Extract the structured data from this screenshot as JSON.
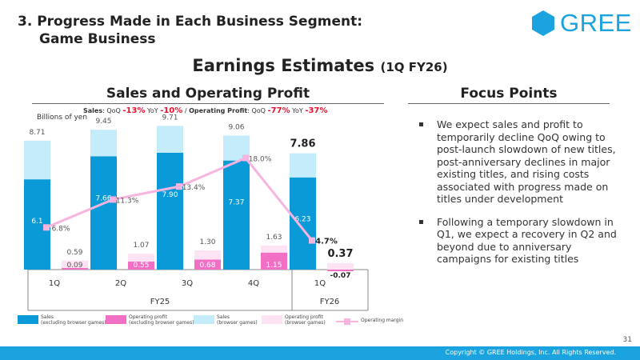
{
  "section_title": {
    "line1": "3. Progress Made in Each Business Segment:",
    "line2": "Game Business"
  },
  "logo": {
    "text": "GREE",
    "color": "#1aa3df"
  },
  "main_title": {
    "text": "Earnings Estimates",
    "sub": "(1Q FY26)"
  },
  "left_heading": "Sales and Operating Profit",
  "right_heading": "Focus Points",
  "growth": {
    "sales_label": "Sales",
    "qoq_label": "QoQ",
    "yoy_label": "YoY",
    "sales_qoq": "-13%",
    "sales_yoy": "-10%",
    "separator": "/",
    "op_label": "Operating Profit",
    "op_qoq": "-77%",
    "op_yoy": "-37%"
  },
  "units": "Billions of yen",
  "focus_points": [
    "We expect sales and profit to temporarily decline QoQ owing to post-launch slowdown of new titles, post-anniversary declines in major existing titles, and rising costs associated with progress made on titles under development",
    "Following a temporary slowdown in Q1, we expect a recovery in Q2 and beyond due to anniversary campaigns for existing titles"
  ],
  "chart_data": {
    "type": "bar",
    "title": "Sales and Operating Profit",
    "ylabel": "Billions of yen",
    "categories": [
      "1Q",
      "2Q",
      "3Q",
      "4Q",
      "1Q"
    ],
    "groups": [
      {
        "label": "FY25",
        "span": 4
      },
      {
        "label": "FY26",
        "span": 1
      }
    ],
    "ylim": [
      -0.3,
      10.5
    ],
    "series": [
      {
        "name": "Sales (excluding browser games)",
        "values": [
          6.1,
          7.66,
          7.9,
          7.37,
          6.23
        ],
        "color": "#0a9ad8"
      },
      {
        "name": "Sales (browser games)",
        "values": [
          2.61,
          1.79,
          1.81,
          1.69,
          1.63
        ],
        "color": "#c5ecfb"
      },
      {
        "name": "Operating profit (excluding browser games)",
        "values": [
          0.09,
          0.55,
          0.68,
          1.15,
          -0.07
        ],
        "color": "#f26fc6"
      },
      {
        "name": "Operating profit (browser games)",
        "values": [
          0.5,
          0.52,
          0.62,
          0.48,
          0.44
        ],
        "color": "#fde3f3"
      }
    ],
    "totals": {
      "sales": [
        8.71,
        9.45,
        9.71,
        9.06,
        7.86
      ],
      "operating_profit": [
        0.59,
        1.07,
        1.3,
        1.63,
        0.37
      ]
    },
    "labels": {
      "sales_ex": [
        "6.1",
        "7.66",
        "7.90",
        "7.37",
        "6.23"
      ],
      "sales_total": [
        "8.71",
        "9.45",
        "9.71",
        "9.06",
        "7.86"
      ],
      "op_ex": [
        "0.09",
        "0.55",
        "0.68",
        "1.15",
        "-0.07"
      ],
      "op_total": [
        "0.59",
        "1.07",
        "1.30",
        "1.63",
        "0.37"
      ],
      "margin": [
        "6.8%",
        "11.3%",
        "13.4%",
        "18.0%",
        "4.7%"
      ]
    },
    "operating_margin": {
      "name": "Operating margin",
      "values": [
        6.8,
        11.3,
        13.4,
        18.0,
        4.7
      ],
      "color": "#f7b4de"
    },
    "margin_axis": [
      0,
      35
    ]
  },
  "legend": [
    {
      "line1": "Sales",
      "line2": "(excluding browser games)",
      "color": "#0a9ad8"
    },
    {
      "line1": "Operating profit",
      "line2": "(excluding browser games)",
      "color": "#f26fc6"
    },
    {
      "line1": "Sales",
      "line2": "(browser games)",
      "color": "#c5ecfb"
    },
    {
      "line1": "Operating profit",
      "line2": "(browser games)",
      "color": "#fde3f3"
    },
    {
      "line1": "Operating margin",
      "line2": "",
      "color": "#f7b4de"
    }
  ],
  "page_number": "31",
  "copyright": "Copyright © GREE Holdings, Inc. All Rights Reserved."
}
